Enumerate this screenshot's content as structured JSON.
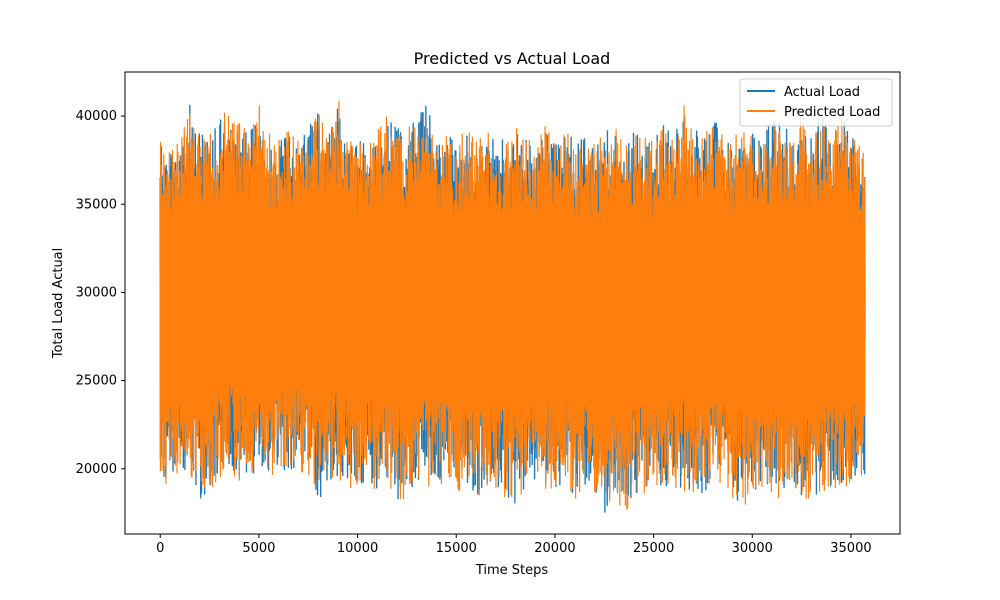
{
  "chart_data": {
    "type": "line",
    "title": "Predicted vs Actual Load",
    "xlabel": "Time Steps",
    "ylabel": "Total Load Actual",
    "xlim": [
      -1785,
      37485
    ],
    "ylim": [
      16300,
      42500
    ],
    "x_ticks": [
      0,
      5000,
      10000,
      15000,
      20000,
      25000,
      30000,
      35000
    ],
    "y_ticks": [
      20000,
      25000,
      30000,
      35000,
      40000
    ],
    "x_tick_labels": [
      "0",
      "5000",
      "10000",
      "15000",
      "20000",
      "25000",
      "30000",
      "35000"
    ],
    "y_tick_labels": [
      "20000",
      "25000",
      "30000",
      "35000",
      "40000"
    ],
    "x_range": [
      0,
      35700
    ],
    "legend_placement": "upper right",
    "grid": false,
    "series": [
      {
        "name": "Actual Load",
        "color": "#1f77b4",
        "envelope": [
          [
            0,
            19100,
            38600
          ],
          [
            500,
            19300,
            38200
          ],
          [
            1000,
            20000,
            38400
          ],
          [
            1500,
            19900,
            40700
          ],
          [
            2000,
            18200,
            38900
          ],
          [
            2500,
            18500,
            39000
          ],
          [
            3000,
            19500,
            39800
          ],
          [
            3500,
            19800,
            40000
          ],
          [
            4000,
            19200,
            39500
          ],
          [
            4500,
            19600,
            39000
          ],
          [
            5000,
            19800,
            40100
          ],
          [
            5500,
            19500,
            39000
          ],
          [
            6000,
            19900,
            38600
          ],
          [
            6500,
            19700,
            39300
          ],
          [
            7000,
            19900,
            38500
          ],
          [
            7500,
            19600,
            39500
          ],
          [
            8000,
            18200,
            40200
          ],
          [
            8500,
            19000,
            39000
          ],
          [
            9000,
            19300,
            41000
          ],
          [
            9500,
            18800,
            39000
          ],
          [
            10000,
            19000,
            38500
          ],
          [
            10500,
            19300,
            39000
          ],
          [
            11000,
            18800,
            39300
          ],
          [
            11500,
            19500,
            40200
          ],
          [
            12000,
            18100,
            39300
          ],
          [
            12500,
            18500,
            39200
          ],
          [
            13000,
            19300,
            40000
          ],
          [
            13500,
            18900,
            41000
          ],
          [
            14000,
            19000,
            38500
          ],
          [
            14500,
            19400,
            39000
          ],
          [
            15000,
            18800,
            38500
          ],
          [
            15500,
            19000,
            39300
          ],
          [
            16000,
            18500,
            38800
          ],
          [
            16500,
            18800,
            39300
          ],
          [
            17000,
            19000,
            38600
          ],
          [
            17500,
            18400,
            38800
          ],
          [
            18000,
            18000,
            39500
          ],
          [
            18500,
            19000,
            38800
          ],
          [
            19000,
            19300,
            38500
          ],
          [
            19500,
            18900,
            39900
          ],
          [
            20000,
            18500,
            38700
          ],
          [
            20500,
            19400,
            39500
          ],
          [
            21000,
            18300,
            38500
          ],
          [
            21500,
            19000,
            38800
          ],
          [
            22000,
            18800,
            38400
          ],
          [
            22500,
            17500,
            39300
          ],
          [
            23000,
            18500,
            39500
          ],
          [
            23500,
            17500,
            38400
          ],
          [
            24000,
            18500,
            39200
          ],
          [
            24500,
            18600,
            39000
          ],
          [
            25000,
            18300,
            38700
          ],
          [
            25500,
            19000,
            39500
          ],
          [
            26000,
            19100,
            38900
          ],
          [
            26500,
            18700,
            40000
          ],
          [
            27000,
            18600,
            39400
          ],
          [
            27500,
            18600,
            39000
          ],
          [
            28000,
            18600,
            40500
          ],
          [
            28500,
            19200,
            38800
          ],
          [
            29000,
            18400,
            38300
          ],
          [
            29500,
            18000,
            40300
          ],
          [
            30000,
            18300,
            39000
          ],
          [
            30500,
            18700,
            38800
          ],
          [
            31000,
            18500,
            40100
          ],
          [
            31500,
            18400,
            39900
          ],
          [
            32000,
            19100,
            38500
          ],
          [
            32500,
            17800,
            40400
          ],
          [
            33000,
            18500,
            38800
          ],
          [
            33500,
            18200,
            40100
          ],
          [
            34000,
            19100,
            38800
          ],
          [
            34500,
            18600,
            40200
          ],
          [
            35000,
            19300,
            38800
          ],
          [
            35700,
            19400,
            38700
          ]
        ]
      },
      {
        "name": "Predicted Load",
        "color": "#ff7f0e",
        "envelope": [
          [
            0,
            19000,
            38700
          ],
          [
            500,
            19200,
            38300
          ],
          [
            1000,
            19900,
            38500
          ],
          [
            1500,
            19800,
            40900
          ],
          [
            2000,
            18100,
            39000
          ],
          [
            2500,
            18400,
            39000
          ],
          [
            3000,
            19400,
            39900
          ],
          [
            3500,
            19700,
            40800
          ],
          [
            4000,
            19100,
            39600
          ],
          [
            4500,
            19500,
            39000
          ],
          [
            5000,
            19700,
            40800
          ],
          [
            5500,
            19400,
            39000
          ],
          [
            6000,
            19800,
            38700
          ],
          [
            6500,
            19600,
            39300
          ],
          [
            7000,
            19800,
            38600
          ],
          [
            7500,
            19500,
            39500
          ],
          [
            8000,
            18100,
            40300
          ],
          [
            8500,
            18900,
            39000
          ],
          [
            9000,
            19200,
            41000
          ],
          [
            9500,
            18700,
            39000
          ],
          [
            10000,
            18900,
            38600
          ],
          [
            10500,
            19200,
            39000
          ],
          [
            11000,
            18700,
            39300
          ],
          [
            11500,
            19400,
            40200
          ],
          [
            12000,
            18000,
            39300
          ],
          [
            12500,
            18400,
            39300
          ],
          [
            13000,
            19200,
            40100
          ],
          [
            13500,
            18800,
            40800
          ],
          [
            14000,
            18900,
            38500
          ],
          [
            14500,
            19300,
            39000
          ],
          [
            15000,
            18700,
            38600
          ],
          [
            15500,
            18900,
            39300
          ],
          [
            16000,
            18400,
            38800
          ],
          [
            16500,
            18700,
            39300
          ],
          [
            17000,
            18900,
            38600
          ],
          [
            17500,
            18300,
            38800
          ],
          [
            18000,
            17900,
            39500
          ],
          [
            18500,
            18900,
            38800
          ],
          [
            19000,
            19200,
            38500
          ],
          [
            19500,
            18800,
            39800
          ],
          [
            20000,
            18400,
            38700
          ],
          [
            20500,
            19300,
            39500
          ],
          [
            21000,
            18200,
            38500
          ],
          [
            21500,
            18900,
            38800
          ],
          [
            22000,
            18700,
            38500
          ],
          [
            22500,
            17400,
            39300
          ],
          [
            23000,
            18400,
            39500
          ],
          [
            23500,
            17400,
            38400
          ],
          [
            24000,
            18400,
            39200
          ],
          [
            24500,
            18500,
            39000
          ],
          [
            25000,
            18200,
            38700
          ],
          [
            25500,
            18900,
            39500
          ],
          [
            26000,
            19000,
            38900
          ],
          [
            26500,
            18600,
            40800
          ],
          [
            27000,
            18500,
            39400
          ],
          [
            27500,
            18500,
            39000
          ],
          [
            28000,
            18500,
            40600
          ],
          [
            28500,
            19100,
            38800
          ],
          [
            29000,
            18300,
            38300
          ],
          [
            29500,
            17900,
            40300
          ],
          [
            30000,
            18200,
            39000
          ],
          [
            30500,
            18600,
            38800
          ],
          [
            31000,
            18400,
            40200
          ],
          [
            31500,
            18300,
            40000
          ],
          [
            32000,
            19000,
            38600
          ],
          [
            32500,
            17700,
            40300
          ],
          [
            33000,
            18400,
            38800
          ],
          [
            33500,
            18100,
            40000
          ],
          [
            34000,
            19000,
            38800
          ],
          [
            34500,
            18500,
            40200
          ],
          [
            35000,
            19200,
            38800
          ],
          [
            35700,
            19300,
            38700
          ]
        ]
      }
    ]
  }
}
